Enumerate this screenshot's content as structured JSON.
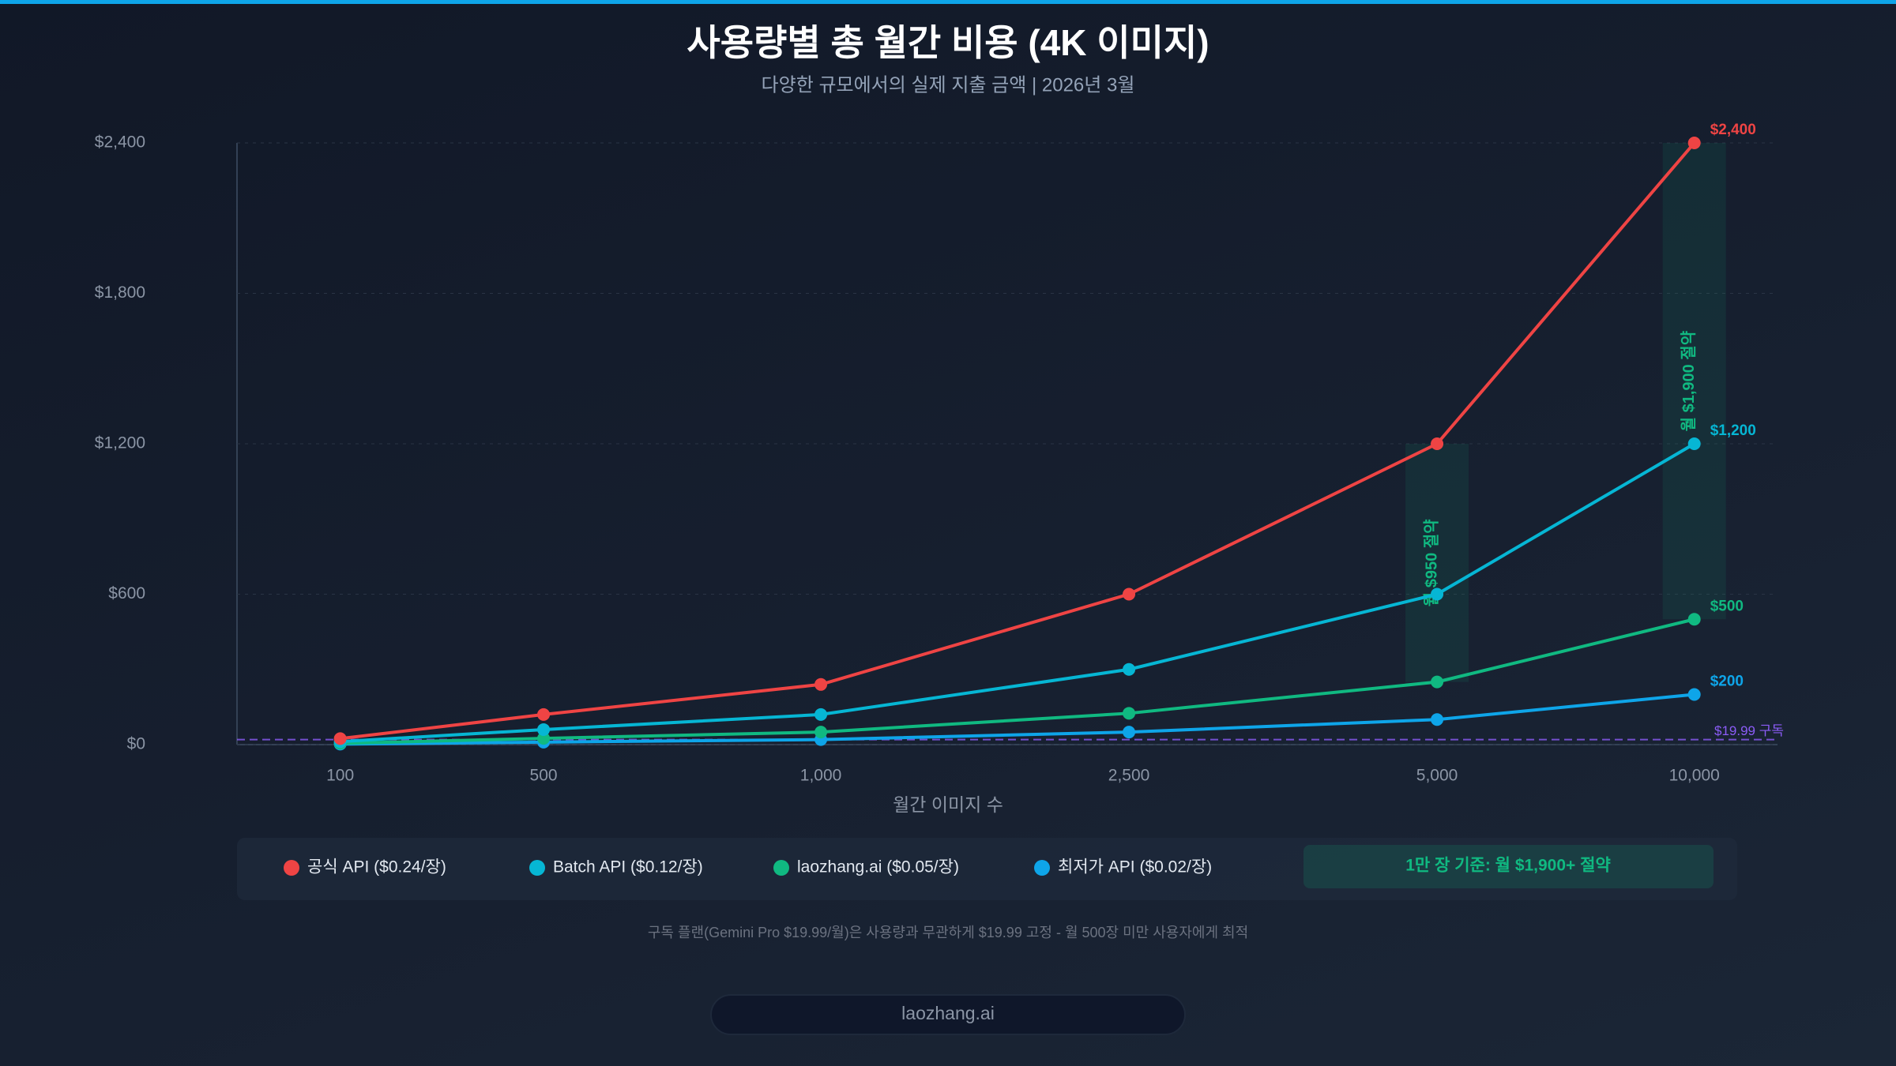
{
  "chart_data": {
    "type": "line",
    "title": "사용량별 총 월간 비용 (4K 이미지)",
    "subtitle": "다양한 규모에서의 실제 지출 금액 | 2026년 3월",
    "x_label": "월간 이미지 수",
    "categories": [
      "100",
      "500",
      "1,000",
      "2,500",
      "5,000",
      "10,000"
    ],
    "ylim": [
      0,
      2400
    ],
    "yticks": [
      {
        "value": 0,
        "label": "$0"
      },
      {
        "value": 600,
        "label": "$600"
      },
      {
        "value": 1200,
        "label": "$1,200"
      },
      {
        "value": 1800,
        "label": "$1,800"
      },
      {
        "value": 2400,
        "label": "$2,400"
      }
    ],
    "grid": true,
    "series": [
      {
        "name": "공식 API ($0.24/장)",
        "color": "#ef4444",
        "values": [
          24,
          120,
          240,
          600,
          1200,
          2400
        ],
        "value_labels": [
          null,
          null,
          null,
          null,
          null,
          "$2,400"
        ]
      },
      {
        "name": "Batch API ($0.12/장)",
        "color": "#06b6d4",
        "values": [
          12,
          60,
          120,
          300,
          600,
          1200
        ],
        "value_labels": [
          null,
          null,
          null,
          null,
          null,
          "$1,200"
        ]
      },
      {
        "name": "laozhang.ai ($0.05/장)",
        "color": "#10b981",
        "values": [
          5,
          25,
          50,
          125,
          250,
          500
        ],
        "value_labels": [
          null,
          null,
          null,
          null,
          null,
          "$500"
        ]
      },
      {
        "name": "최저가 API ($0.02/장)",
        "color": "#0ea5e9",
        "values": [
          2,
          10,
          20,
          50,
          100,
          200
        ],
        "value_labels": [
          null,
          null,
          null,
          null,
          null,
          "$200"
        ]
      }
    ],
    "reference_line": {
      "value": 19.99,
      "label": "$19.99 구독",
      "color": "#8b5cf6"
    },
    "savings_bands": [
      {
        "category": "5,000",
        "label": "월 $950 절약"
      },
      {
        "category": "10,000",
        "label": "월 $1,900 절약"
      }
    ],
    "highlight": "1만 장 기준: 월 $1,900+ 절약",
    "note": "구독 플랜(Gemini Pro $19.99/월)은 사용량과 무관하게 $19.99 고정 - 월 500장 미만 사용자에게 최적",
    "footer": "laozhang.ai"
  }
}
